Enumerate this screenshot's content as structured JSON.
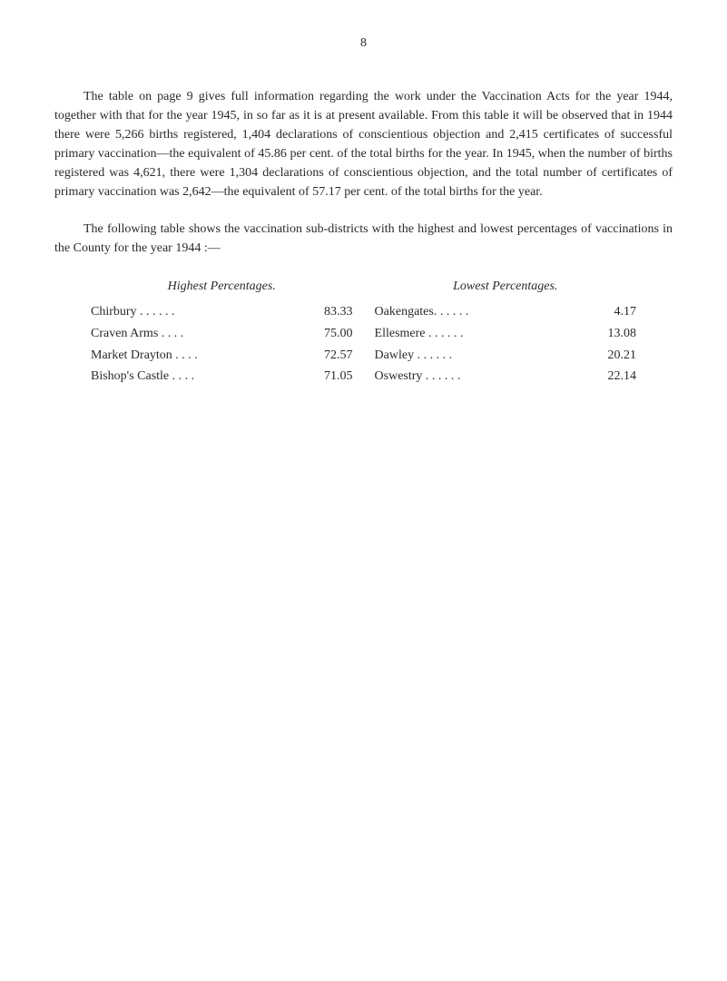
{
  "pageNumber": "8",
  "paragraph1": "The table on page 9 gives full information regarding the work under the Vaccination Acts for the year 1944, together with that for the year 1945, in so far as it is at present available. From this table it will be observed that in 1944 there were 5,266 births registered, 1,404 declarations of conscientious objection and 2,415 certificates of successful primary vaccination—the equivalent of 45.86 per cent. of the total births for the year.  In 1945, when the number of births registered was 4,621, there were 1,304 declarations of conscientious objection, and the total number of certificates of primary vaccination was 2,642—the equivalent of 57.17 per cent. of the total births for the year.",
  "paragraph2": "The following table shows the vaccination sub-districts with the highest and lowest percentages of vaccinations in the County for the year 1944 :—",
  "highestTitle": "Highest Percentages.",
  "lowestTitle": "Lowest Percentages.",
  "highest": [
    {
      "label": "Chirbury   . .       . .      . .",
      "value": "83.33"
    },
    {
      "label": "Craven Arms        . .      . .",
      "value": "75.00"
    },
    {
      "label": "Market Drayton   . .      . .",
      "value": "72.57"
    },
    {
      "label": "Bishop's Castle     . .      . .",
      "value": "71.05"
    }
  ],
  "lowest": [
    {
      "label": "Oakengates. .       . .      . .",
      "value": "4.17"
    },
    {
      "label": "Ellesmere  . .       . .      . .",
      "value": "13.08"
    },
    {
      "label": "Dawley        . .       . .      . .",
      "value": "20.21"
    },
    {
      "label": "Oswestry   . .       . .      . .",
      "value": "22.14"
    }
  ]
}
